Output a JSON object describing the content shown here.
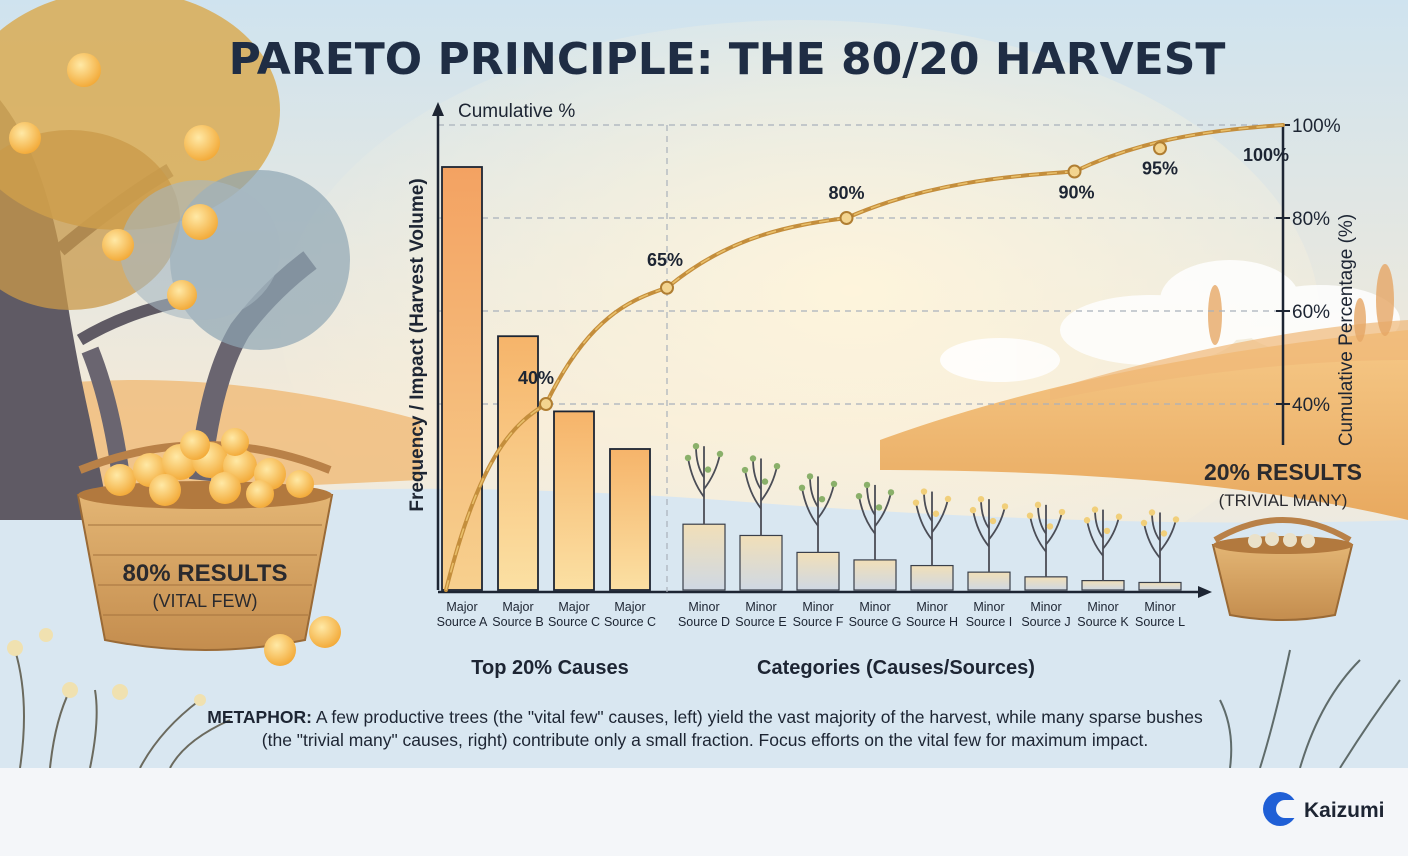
{
  "title": "PARETO PRINCIPLE: THE 80/20 HARVEST",
  "chart_data": {
    "type": "bar",
    "categories": [
      "Major Source A",
      "Major Source B",
      "Major Source C",
      "Major Source C",
      "Minor Source D",
      "Minor Source E",
      "Minor Source F",
      "Minor Source G",
      "Minor Source H",
      "Minor Source I",
      "Minor Source J",
      "Minor Source K",
      "Minor Source L"
    ],
    "series": [
      {
        "values": [
          45,
          27,
          19,
          15,
          7,
          5.8,
          4,
          3.2,
          2.6,
          1.9,
          1.4,
          1.0,
          0.8
        ]
      }
    ],
    "cumulative": {
      "x_positions": [
        0,
        1.5,
        3.5,
        6.5,
        10.5,
        13
      ],
      "values": [
        0,
        40,
        65,
        80,
        90,
        100
      ],
      "labels": [
        "40%",
        "65%",
        "80%",
        "90%",
        "95%",
        "100%"
      ],
      "label_points": [
        1.5,
        3.5,
        6.5,
        10.5,
        12.5,
        13
      ],
      "label_values": [
        40,
        65,
        80,
        90,
        95,
        100
      ]
    },
    "ylabel": "Frequency / Impact (Harvest Volume)",
    "y2label": "Cumulative Percentage (%)",
    "y_top_label": "Cumulative %",
    "xlabel": "Categories (Causes/Sources)",
    "x_group_label": "Top 20% Causes",
    "y2_ticks": [
      "40%",
      "60%",
      "80%",
      "100%"
    ],
    "y2_tick_values": [
      40,
      60,
      80,
      100
    ],
    "ylim": [
      0,
      50
    ],
    "colors": {
      "major_top": "#f3a262",
      "major_bottom": "#f8c98a",
      "minor_top": "#d6dbe2",
      "minor_bottom": "#f1dfba",
      "curve": "#c89a45",
      "sky": "#dbe9f2"
    }
  },
  "left_basket": {
    "big": "80% RESULTS",
    "small": "(VITAL FEW)"
  },
  "right_basket": {
    "big": "20% RESULTS",
    "small": "(TRIVIAL MANY)"
  },
  "metaphor": {
    "label": "METAPHOR:",
    "line1": "A few productive trees (the \"vital few\" causes, left) yield the vast majority of the harvest, while many sparse bushes",
    "line2": "(the \"trivial many\" causes, right) contribute only a small fraction. Focus efforts on the vital few for maximum impact."
  },
  "brand": {
    "name": "Kaizumi",
    "color": "#1f5fd6"
  }
}
